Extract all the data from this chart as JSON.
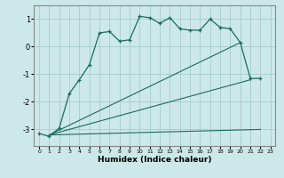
{
  "xlabel": "Humidex (Indice chaleur)",
  "bg_color": "#cce8e8",
  "line_color": "#1a6b5a",
  "xlim": [
    -0.5,
    23.5
  ],
  "ylim": [
    -3.6,
    1.5
  ],
  "yticks": [
    -3,
    -2,
    -1,
    0,
    1
  ],
  "xticks": [
    0,
    1,
    2,
    3,
    4,
    5,
    6,
    7,
    8,
    9,
    10,
    11,
    12,
    13,
    14,
    15,
    16,
    17,
    18,
    19,
    20,
    21,
    22,
    23
  ],
  "curve1_x": [
    0,
    1,
    2,
    3,
    4,
    5,
    6,
    7,
    8,
    9,
    10,
    11,
    12,
    13,
    14,
    15,
    16,
    17,
    18,
    19,
    20,
    21,
    22
  ],
  "curve1_y": [
    -3.15,
    -3.25,
    -2.95,
    -1.7,
    -1.2,
    -0.65,
    0.5,
    0.55,
    0.2,
    0.25,
    1.1,
    1.05,
    0.85,
    1.05,
    0.65,
    0.6,
    0.6,
    1.0,
    0.7,
    0.65,
    0.15,
    -1.15,
    -1.15
  ],
  "fan_line1_x": [
    1,
    22
  ],
  "fan_line1_y": [
    -3.2,
    -3.0
  ],
  "fan_line2_x": [
    1,
    21
  ],
  "fan_line2_y": [
    -3.2,
    -1.2
  ],
  "fan_line3_x": [
    1,
    20
  ],
  "fan_line3_y": [
    -3.2,
    0.15
  ]
}
